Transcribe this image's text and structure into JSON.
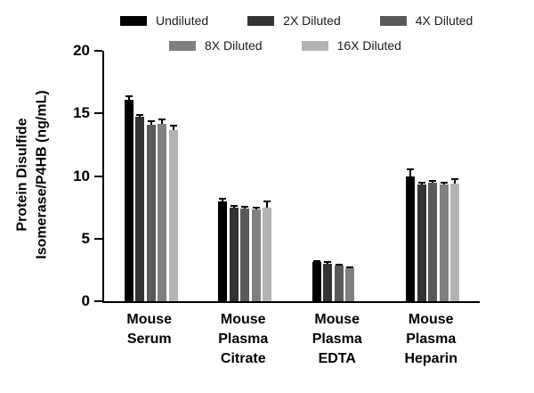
{
  "chart_data": {
    "type": "bar",
    "title": "",
    "ylabel": "Protein Disulfide Isomerase/P4HB (ng/mL)",
    "ylabel_lines": {
      "0": "Protein Disulfide",
      "1": "Isomerase/P4HB (ng/mL)"
    },
    "xlabel": "",
    "ylim": [
      0,
      20
    ],
    "yticks": [
      0,
      5,
      10,
      15,
      20
    ],
    "grid": false,
    "legend_position": "top",
    "categories": [
      {
        "label": "Mouse Serum",
        "lines": [
          "Mouse",
          "Serum"
        ]
      },
      {
        "label": "Mouse Plasma Citrate",
        "lines": [
          "Mouse",
          "Plasma",
          "Citrate"
        ]
      },
      {
        "label": "Mouse Plasma EDTA",
        "lines": [
          "Mouse",
          "Plasma",
          "EDTA"
        ]
      },
      {
        "label": "Mouse Plasma Heparin",
        "lines": [
          "Mouse",
          "Plasma",
          "Heparin"
        ]
      }
    ],
    "series": [
      {
        "name": "Undiluted",
        "color": "#000000",
        "values": [
          16.1,
          8.0,
          3.1,
          10.0
        ],
        "errors": [
          0.3,
          0.2,
          0.12,
          0.55
        ]
      },
      {
        "name": "2X Diluted",
        "color": "#333333",
        "values": [
          14.7,
          7.5,
          3.0,
          9.3
        ],
        "errors": [
          0.2,
          0.15,
          0.15,
          0.2
        ]
      },
      {
        "name": "4X Diluted",
        "color": "#595959",
        "values": [
          14.1,
          7.4,
          2.85,
          9.45
        ],
        "errors": [
          0.25,
          0.15,
          0.1,
          0.15
        ]
      },
      {
        "name": "8X Diluted",
        "color": "#808080",
        "values": [
          14.2,
          7.3,
          2.6,
          9.3
        ],
        "errors": [
          0.3,
          0.15,
          0.1,
          0.2
        ]
      },
      {
        "name": "16X Diluted",
        "color": "#b3b3b3",
        "values": [
          13.7,
          7.5,
          null,
          9.4
        ],
        "errors": [
          0.35,
          0.45,
          null,
          0.35
        ]
      }
    ],
    "legend_rows": [
      [
        "Undiluted",
        "2X Diluted",
        "4X Diluted"
      ],
      [
        "8X Diluted",
        "16X Diluted"
      ]
    ]
  }
}
